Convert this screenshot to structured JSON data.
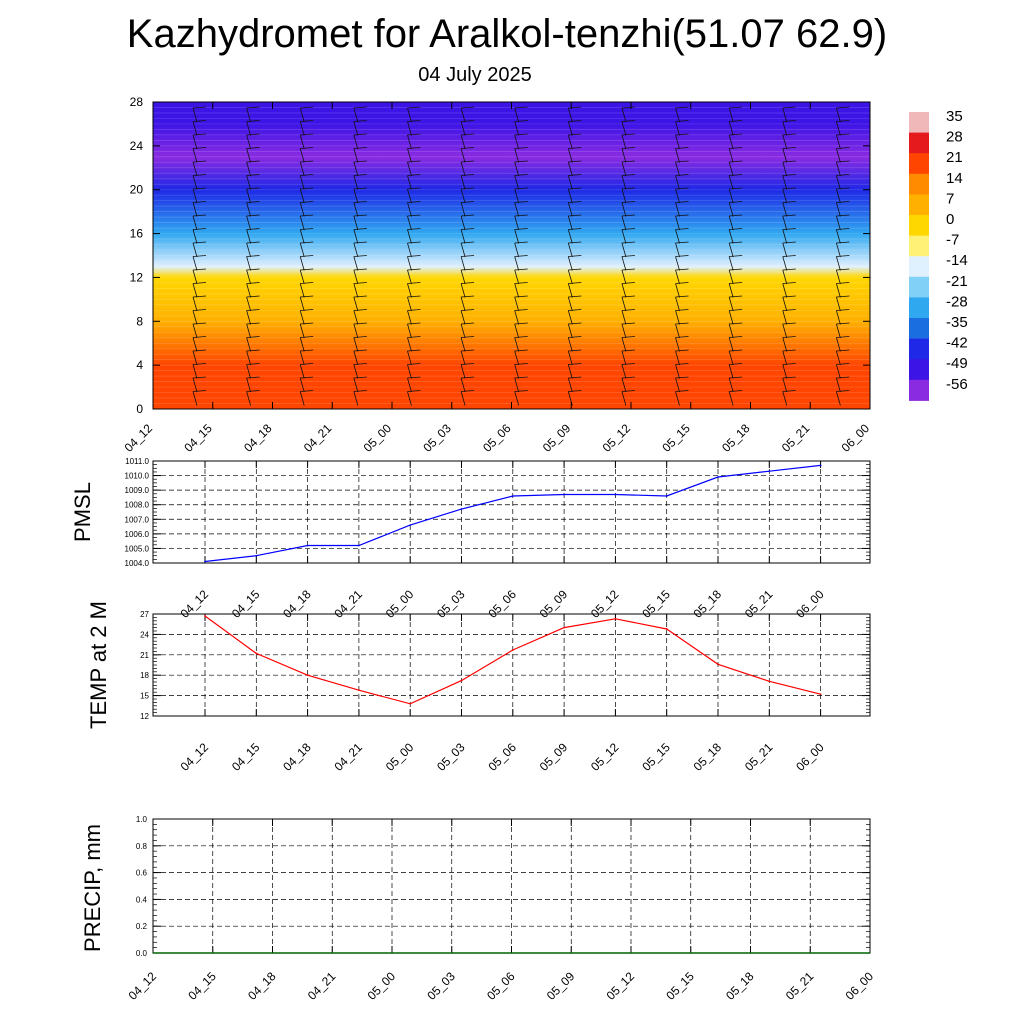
{
  "title": "Kazhydromet for Aralkol-tenzhi(51.07 62.9)",
  "subtitle": "04 July 2025",
  "chart_data": [
    {
      "type": "heatmap",
      "x_ticks": [
        "04_12",
        "04_15",
        "04_18",
        "04_21",
        "05_00",
        "05_03",
        "05_06",
        "05_09",
        "05_12",
        "05_15",
        "05_18",
        "05_21",
        "06_00"
      ],
      "y_ticks": [
        "0",
        "4",
        "8",
        "12",
        "16",
        "20",
        "24",
        "28"
      ],
      "ylim": [
        0,
        28
      ],
      "colorbar_labels": [
        "35",
        "28",
        "21",
        "14",
        "7",
        "0",
        "-7",
        "-14",
        "-21",
        "-28",
        "-35",
        "-42",
        "-49",
        "-56"
      ],
      "colorbar_colors": [
        "#f0b8b8",
        "#e41a1c",
        "#ff4500",
        "#ff8c00",
        "#ffb000",
        "#ffd700",
        "#fff176",
        "#dff0ff",
        "#80d0f8",
        "#30a8f0",
        "#1a6ee0",
        "#1e28e6",
        "#3c14e6",
        "#8a2be2"
      ],
      "profile": [
        {
          "y": 0,
          "t": 24
        },
        {
          "y": 4,
          "t": 18
        },
        {
          "y": 8,
          "t": 8
        },
        {
          "y": 12,
          "t": -2
        },
        {
          "y": 13,
          "t": -14
        },
        {
          "y": 16,
          "t": -30
        },
        {
          "y": 20,
          "t": -45
        },
        {
          "y": 23,
          "t": -58
        },
        {
          "y": 26,
          "t": -55
        },
        {
          "y": 28,
          "t": -52
        }
      ]
    },
    {
      "type": "line",
      "ylabel": "PMSL",
      "categories": [
        "04_12",
        "04_15",
        "04_18",
        "04_21",
        "05_00",
        "05_03",
        "05_06",
        "05_09",
        "05_12",
        "05_15",
        "05_18",
        "05_21",
        "06_00"
      ],
      "y_ticks": [
        "1004.0",
        "1005.0",
        "1006.0",
        "1007.0",
        "1008.0",
        "1009.0",
        "1010.0",
        "1011.0"
      ],
      "ylim": [
        1004.0,
        1011.0
      ],
      "grid": true,
      "series": [
        {
          "color": "#0000ff",
          "values": [
            1004.1,
            1004.5,
            1005.2,
            1005.2,
            1006.6,
            1007.7,
            1008.6,
            1008.7,
            1008.7,
            1008.6,
            1009.9,
            1010.3,
            1010.7
          ]
        }
      ]
    },
    {
      "type": "line",
      "ylabel": "TEMP at 2 M",
      "categories": [
        "04_12",
        "04_15",
        "04_18",
        "04_21",
        "05_00",
        "05_03",
        "05_06",
        "05_09",
        "05_12",
        "05_15",
        "05_18",
        "05_21",
        "06_00"
      ],
      "y_ticks": [
        "12",
        "15",
        "18",
        "21",
        "24",
        "27"
      ],
      "ylim": [
        12,
        27
      ],
      "grid": true,
      "series": [
        {
          "color": "#ff0000",
          "values": [
            26.7,
            21.2,
            18.0,
            15.8,
            13.8,
            17.2,
            21.7,
            25.0,
            26.3,
            24.8,
            19.6,
            17.1,
            15.2
          ]
        }
      ]
    },
    {
      "type": "line",
      "ylabel": "PRECIP, mm",
      "categories": [
        "04_12",
        "04_15",
        "04_18",
        "04_21",
        "05_00",
        "05_03",
        "05_06",
        "05_09",
        "05_12",
        "05_15",
        "05_18",
        "05_21",
        "06_00"
      ],
      "y_ticks": [
        "0.0",
        "0.2",
        "0.4",
        "0.6",
        "0.8",
        "1.0"
      ],
      "ylim": [
        0,
        1.0
      ],
      "grid": true,
      "series": [
        {
          "color": "#006400",
          "values": [
            0,
            0,
            0,
            0,
            0,
            0,
            0,
            0,
            0,
            0,
            0,
            0,
            0
          ]
        }
      ]
    }
  ]
}
